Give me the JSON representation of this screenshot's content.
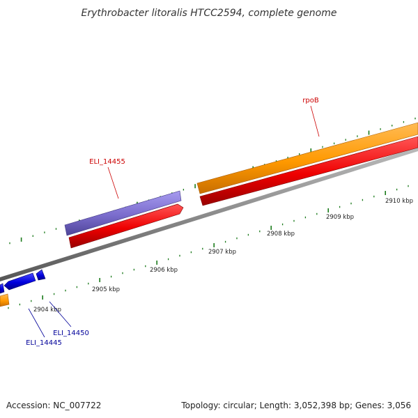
{
  "title": "Erythrobacter litoralis HTCC2594, complete genome",
  "footer": {
    "accession": "Accession: NC_007722",
    "summary": "Topology: circular; Length: 3,052,398 bp; Genes: 3,056"
  },
  "colors": {
    "backbone": "#8c8c8c",
    "tick": "#1a7a1a",
    "cds_red": "#ee0000",
    "cds_orange": "#ff9900",
    "cds_purple": "#7a6ccc",
    "cds_blue": "#0000dd",
    "label_red": "#cc0000",
    "label_blue": "#000099"
  },
  "scale": {
    "unit": "kbp",
    "labels": [
      "2904 kbp",
      "2905 kbp",
      "2906 kbp",
      "2907 kbp",
      "2908 kbp",
      "2909 kbp",
      "2910 kbp"
    ]
  },
  "genes": [
    {
      "id": "ELI_14445",
      "label": "ELI_14445",
      "color": "blue"
    },
    {
      "id": "ELI_14450",
      "label": "ELI_14450",
      "color": "blue"
    },
    {
      "id": "ELI_14455",
      "label": "ELI_14455",
      "color": "red"
    },
    {
      "id": "rpoB",
      "label": "rpoB",
      "color": "red"
    }
  ]
}
